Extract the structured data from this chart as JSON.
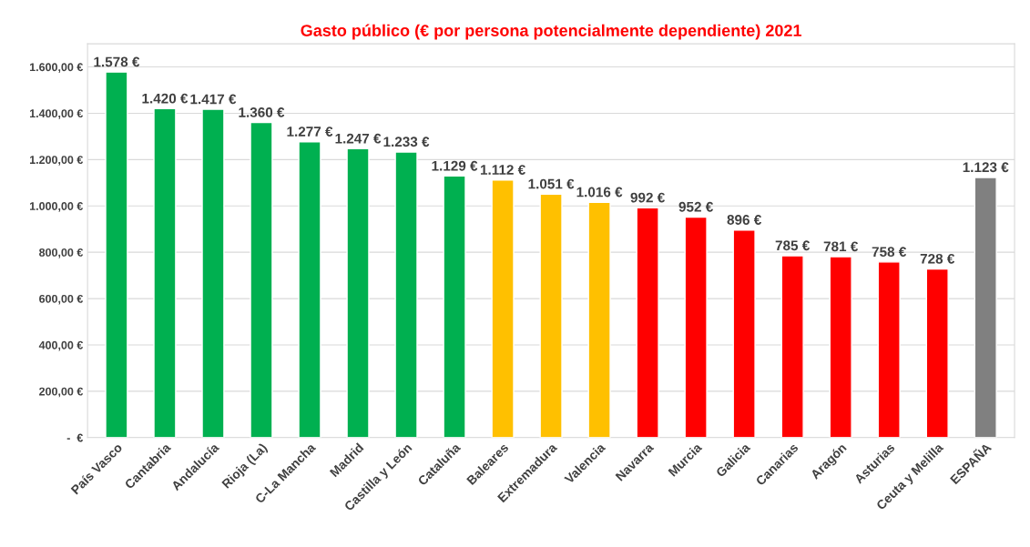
{
  "chart_data": {
    "type": "bar",
    "title": "Gasto público (€ por persona potencialmente dependiente) 2021",
    "categories": [
      "País Vasco",
      "Cantabria",
      "Andalucía",
      "Rioja (La)",
      "C-La Mancha",
      "Madrid",
      "Castilla y León",
      "Cataluña",
      "Baleares",
      "Extremadura",
      "Valencia",
      "Navarra",
      "Murcia",
      "Galicia",
      "Canarias",
      "Aragón",
      "Asturias",
      "Ceuta y Melilla",
      "ESPAÑA"
    ],
    "values": [
      1578,
      1420,
      1417,
      1360,
      1277,
      1247,
      1233,
      1129,
      1112,
      1051,
      1016,
      992,
      952,
      896,
      785,
      781,
      758,
      728,
      1123
    ],
    "value_labels": [
      "1.578 €",
      "1.420 €",
      "1.417 €",
      "1.360 €",
      "1.277 €",
      "1.247 €",
      "1.233 €",
      "1.129 €",
      "1.112 €",
      "1.051 €",
      "1.016 €",
      "992 €",
      "952 €",
      "896 €",
      "785 €",
      "781 €",
      "758 €",
      "728 €",
      "1.123 €"
    ],
    "colors": [
      "#00b050",
      "#00b050",
      "#00b050",
      "#00b050",
      "#00b050",
      "#00b050",
      "#00b050",
      "#00b050",
      "#ffc000",
      "#ffc000",
      "#ffc000",
      "#ff0000",
      "#ff0000",
      "#ff0000",
      "#ff0000",
      "#ff0000",
      "#ff0000",
      "#ff0000",
      "#808080"
    ],
    "ylim": [
      0,
      1700
    ],
    "yticks": [
      {
        "value": 0,
        "label": "-  €"
      },
      {
        "value": 200,
        "label": "200,00 €"
      },
      {
        "value": 400,
        "label": "400,00 €"
      },
      {
        "value": 600,
        "label": "600,00 €"
      },
      {
        "value": 800,
        "label": "800,00 €"
      },
      {
        "value": 1000,
        "label": "1.000,00 €"
      },
      {
        "value": 1200,
        "label": "1.200,00 €"
      },
      {
        "value": 1400,
        "label": "1.400,00 €"
      },
      {
        "value": 1600,
        "label": "1.600,00 €"
      }
    ],
    "grid": "y",
    "legend": false
  }
}
